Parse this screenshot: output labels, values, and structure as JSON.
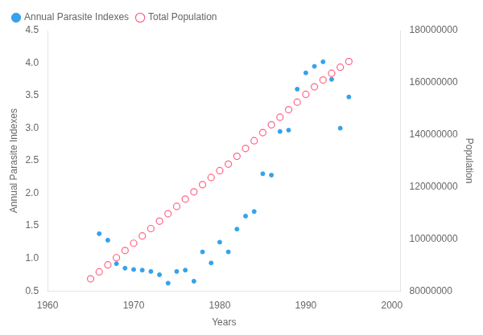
{
  "chart_data": {
    "type": "scatter",
    "xlabel": "Years",
    "ylabel": "Annual Parasite Indexes",
    "y2label": "Population",
    "xlim": [
      1960,
      2001
    ],
    "xticks": [
      1960,
      1970,
      1980,
      1990,
      2000
    ],
    "ylim": [
      0.5,
      4.5
    ],
    "yticks": [
      0.5,
      {
        "value": 1.0,
        "label": "1.0"
      },
      1.5,
      {
        "value": 2.0,
        "label": "2.0"
      },
      2.5,
      {
        "value": 3.0,
        "label": "3.0"
      },
      3.5,
      {
        "value": 4.0,
        "label": "4.0"
      },
      4.5
    ],
    "y2lim": [
      80000000,
      180000000
    ],
    "y2ticks": [
      80000000,
      100000000,
      120000000,
      140000000,
      160000000,
      180000000
    ],
    "grid": false,
    "legend": "upper left",
    "series": [
      {
        "name": "Annual Parasite Indexes",
        "marker": "dot",
        "x": [
          1966,
          1967,
          1968,
          1969,
          1970,
          1971,
          1972,
          1973,
          1974,
          1975,
          1976,
          1977,
          1978,
          1979,
          1980,
          1981,
          1982,
          1983,
          1984,
          1985,
          1986,
          1987,
          1988,
          1989,
          1990,
          1991,
          1992,
          1993,
          1994,
          1995
        ],
        "values": [
          1.38,
          1.28,
          0.92,
          0.85,
          0.83,
          0.82,
          0.8,
          0.75,
          0.62,
          0.8,
          0.82,
          0.65,
          1.1,
          0.93,
          1.25,
          1.1,
          1.45,
          1.65,
          1.72,
          2.3,
          2.28,
          2.95,
          2.97,
          3.6,
          3.85,
          3.95,
          4.02,
          3.75,
          3.0,
          3.48
        ]
      },
      {
        "name": "Total Population",
        "marker": "circle",
        "axis": "y2",
        "x": [
          1965,
          1966,
          1967,
          1968,
          1969,
          1970,
          1971,
          1972,
          1973,
          1974,
          1975,
          1976,
          1977,
          1978,
          1979,
          1980,
          1981,
          1982,
          1983,
          1984,
          1985,
          1986,
          1987,
          1988,
          1989,
          1990,
          1991,
          1992,
          1993,
          1994,
          1995
        ],
        "values": [
          84680000,
          87342000,
          90046000,
          92780000,
          95540000,
          98330000,
          101130000,
          103960000,
          106790000,
          109640000,
          112470000,
          115280000,
          118060000,
          120830000,
          123590000,
          126200000,
          128700000,
          131700000,
          134700000,
          137700000,
          140800000,
          143800000,
          146700000,
          149600000,
          152500000,
          155500000,
          158400000,
          161000000,
          163600000,
          165900000,
          168100000
        ]
      }
    ]
  }
}
